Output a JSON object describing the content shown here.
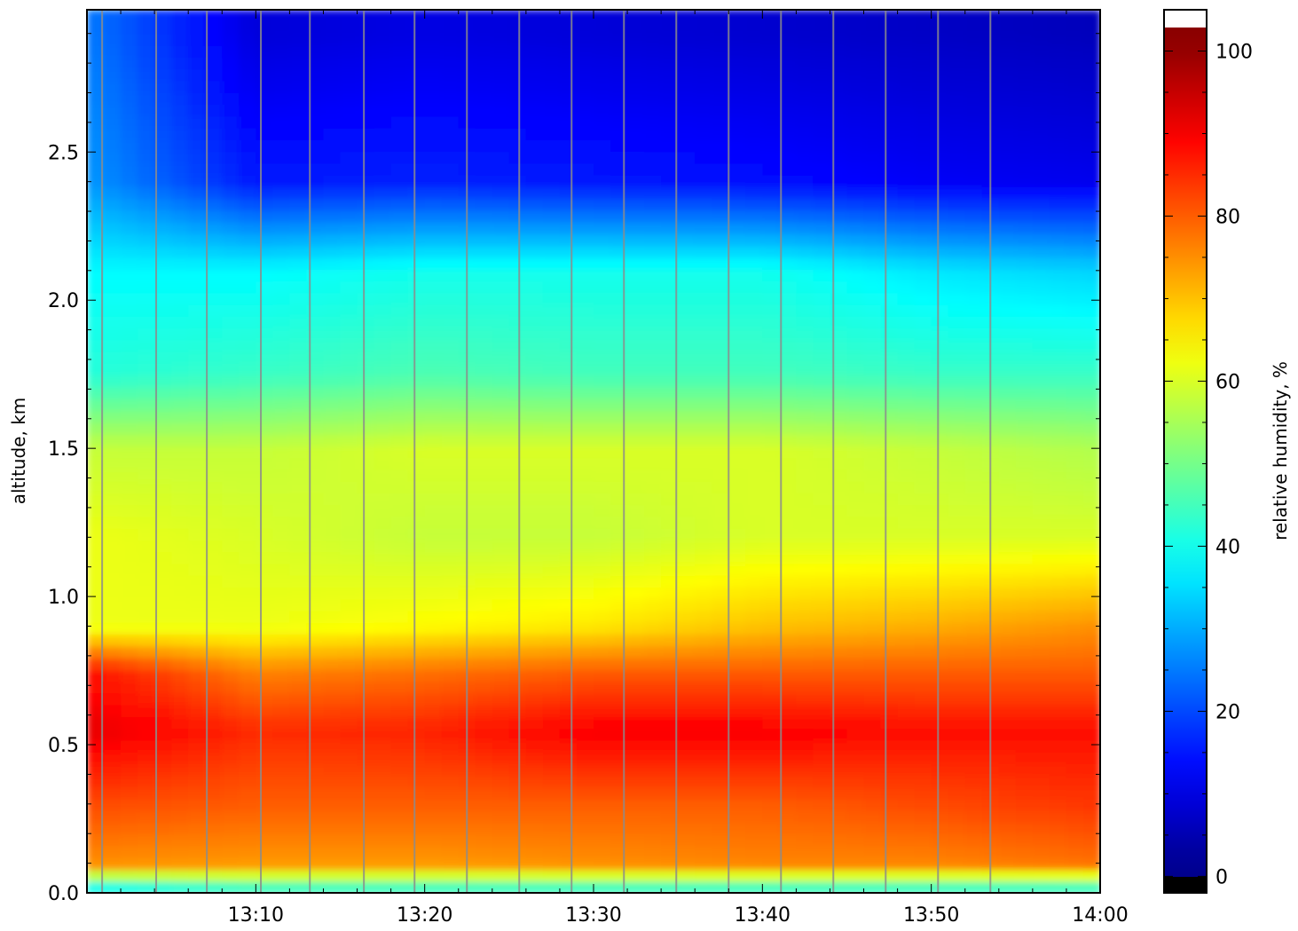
{
  "chart_data": {
    "type": "heatmap",
    "title": "",
    "xlabel": "",
    "ylabel": "altitude, km",
    "x_ticks": [
      "13:10",
      "13:20",
      "13:30",
      "13:40",
      "13:50",
      "14:00"
    ],
    "x_tick_minutes": [
      10,
      20,
      30,
      40,
      50,
      60
    ],
    "xlim_minutes": [
      0,
      60
    ],
    "y_ticks": [
      "0.0",
      "0.5",
      "1.0",
      "1.5",
      "2.0",
      "2.5"
    ],
    "y_tick_values": [
      0.0,
      0.5,
      1.0,
      1.5,
      2.0,
      2.5
    ],
    "ylim": [
      0,
      2.98
    ],
    "colorbar": {
      "label": "relative humidity, %",
      "ticks": [
        "0",
        "20",
        "40",
        "60",
        "80",
        "100"
      ],
      "tick_values": [
        0,
        20,
        40,
        60,
        80,
        100
      ],
      "range": [
        -2,
        105
      ]
    },
    "scan_lines_minutes": [
      0.9,
      4.1,
      7.1,
      10.3,
      13.2,
      16.4,
      19.4,
      22.5,
      25.6,
      28.7,
      31.8,
      34.9,
      38.0,
      41.1,
      44.2,
      47.3,
      50.4,
      53.5
    ],
    "profiles": [
      {
        "time_minutes": 0,
        "altitudes": [
          0.02,
          0.1,
          0.3,
          0.55,
          0.75,
          0.9,
          1.2,
          1.5,
          1.75,
          2.1,
          2.4,
          2.9
        ],
        "rh": [
          40,
          75,
          82,
          92,
          88,
          62,
          62,
          58,
          42,
          38,
          28,
          25
        ]
      },
      {
        "time_minutes": 10,
        "altitudes": [
          0.02,
          0.1,
          0.3,
          0.55,
          0.75,
          0.9,
          1.2,
          1.5,
          1.75,
          2.1,
          2.4,
          2.9
        ],
        "rh": [
          45,
          74,
          80,
          85,
          76,
          62,
          60,
          58,
          44,
          38,
          15,
          9
        ]
      },
      {
        "time_minutes": 20,
        "altitudes": [
          0.02,
          0.1,
          0.3,
          0.55,
          0.75,
          0.9,
          1.2,
          1.5,
          1.75,
          2.1,
          2.4,
          2.9
        ],
        "rh": [
          45,
          74,
          80,
          86,
          78,
          64,
          58,
          60,
          46,
          40,
          16,
          10
        ]
      },
      {
        "time_minutes": 30,
        "altitudes": [
          0.02,
          0.1,
          0.3,
          0.55,
          0.75,
          0.9,
          1.2,
          1.5,
          1.75,
          2.1,
          2.4,
          2.9
        ],
        "rh": [
          45,
          75,
          80,
          90,
          80,
          66,
          58,
          60,
          45,
          40,
          15,
          9
        ]
      },
      {
        "time_minutes": 40,
        "altitudes": [
          0.02,
          0.1,
          0.3,
          0.55,
          0.75,
          0.9,
          1.2,
          1.5,
          1.75,
          2.1,
          2.4,
          2.9
        ],
        "rh": [
          45,
          76,
          80,
          90,
          80,
          70,
          60,
          60,
          45,
          40,
          14,
          8
        ]
      },
      {
        "time_minutes": 50,
        "altitudes": [
          0.02,
          0.1,
          0.3,
          0.55,
          0.75,
          0.9,
          1.2,
          1.5,
          1.75,
          2.1,
          2.4,
          2.9
        ],
        "rh": [
          45,
          76,
          82,
          88,
          80,
          72,
          60,
          58,
          44,
          36,
          12,
          7
        ]
      },
      {
        "time_minutes": 60,
        "altitudes": [
          0.02,
          0.1,
          0.3,
          0.55,
          0.75,
          0.9,
          1.2,
          1.5,
          1.75,
          2.1,
          2.4,
          2.9
        ],
        "rh": [
          45,
          78,
          84,
          88,
          80,
          75,
          60,
          56,
          44,
          34,
          11,
          6
        ]
      }
    ]
  }
}
